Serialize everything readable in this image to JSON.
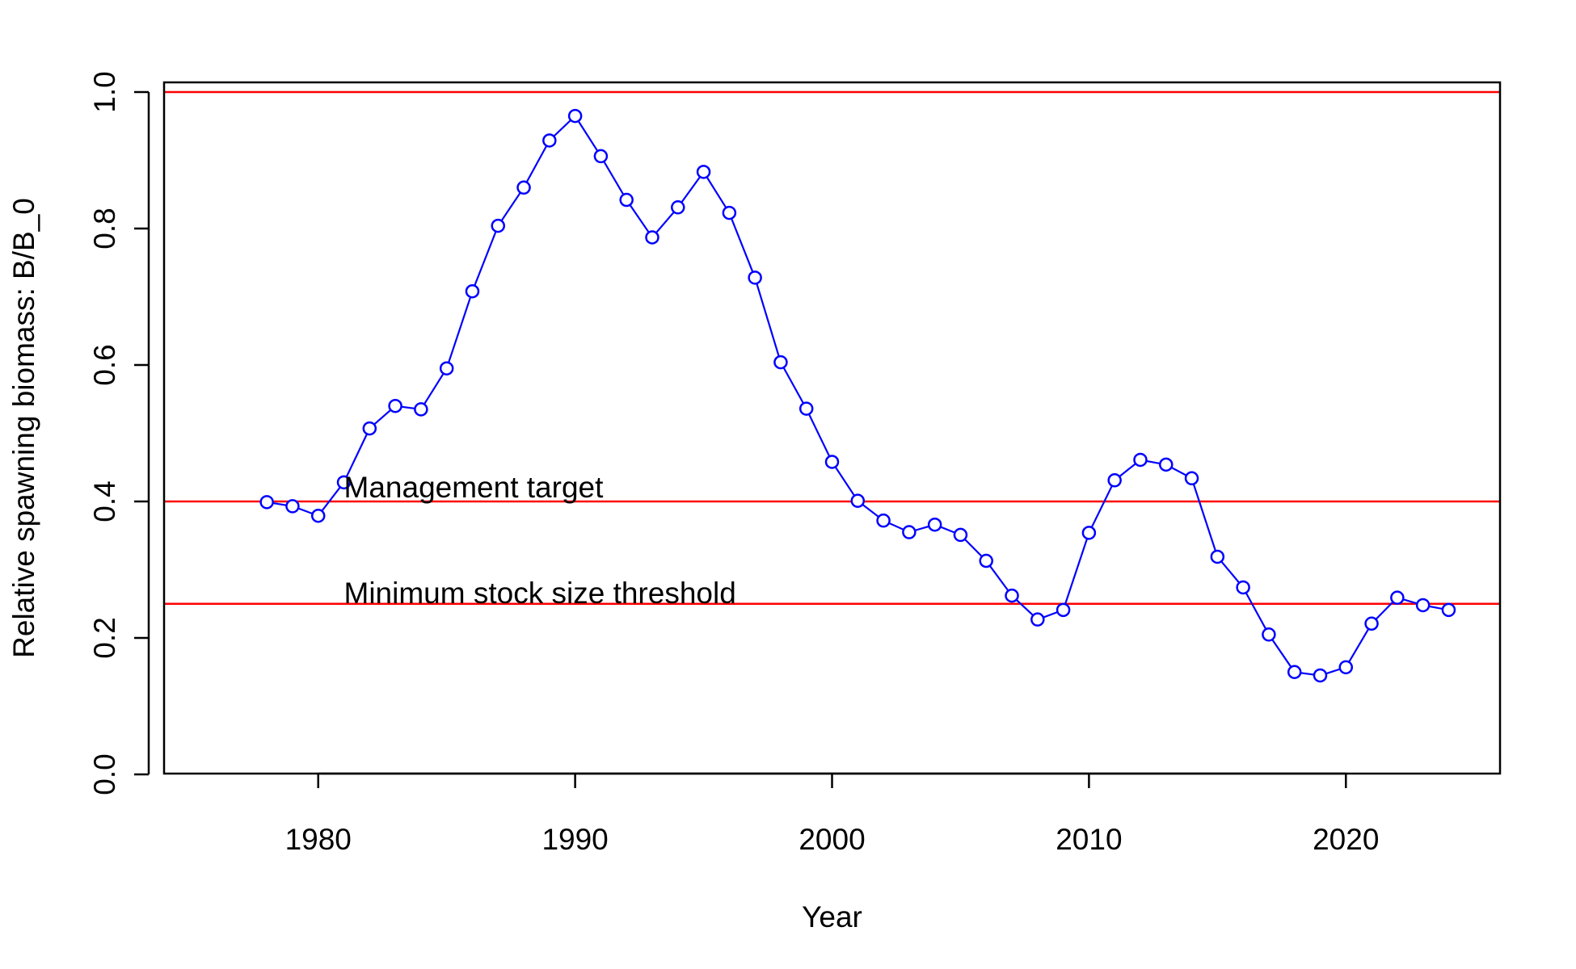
{
  "chart_data": {
    "type": "line",
    "title": "",
    "xlabel": "Year",
    "ylabel": "Relative spawning biomass: B/B_0",
    "xlim": [
      1974,
      2026
    ],
    "ylim": [
      0,
      1
    ],
    "xticks": [
      1980,
      1990,
      2000,
      2010,
      2020
    ],
    "yticks": [
      0.0,
      0.2,
      0.4,
      0.6,
      0.8,
      1.0
    ],
    "ytick_labels": [
      "0.0",
      "0.2",
      "0.4",
      "0.6",
      "0.8",
      "1.0"
    ],
    "grid": false,
    "legend": "none",
    "series": [
      {
        "color": "#0000ff",
        "marker": "open-circle",
        "x": [
          1978,
          1979,
          1980,
          1981,
          1982,
          1983,
          1984,
          1985,
          1986,
          1987,
          1988,
          1989,
          1990,
          1991,
          1992,
          1993,
          1994,
          1995,
          1996,
          1997,
          1998,
          1999,
          2000,
          2001,
          2002,
          2003,
          2004,
          2005,
          2006,
          2007,
          2008,
          2009,
          2010,
          2011,
          2012,
          2013,
          2014,
          2015,
          2016,
          2017,
          2018,
          2019,
          2020,
          2021,
          2022,
          2023,
          2024
        ],
        "y": [
          0.399,
          0.393,
          0.379,
          0.428,
          0.507,
          0.54,
          0.535,
          0.595,
          0.708,
          0.804,
          0.86,
          0.929,
          0.965,
          0.906,
          0.842,
          0.787,
          0.831,
          0.883,
          0.823,
          0.728,
          0.604,
          0.536,
          0.458,
          0.401,
          0.372,
          0.355,
          0.366,
          0.351,
          0.313,
          0.262,
          0.227,
          0.241,
          0.354,
          0.431,
          0.461,
          0.454,
          0.434,
          0.319,
          0.274,
          0.205,
          0.15,
          0.145,
          0.157,
          0.221,
          0.259,
          0.248,
          0.241
        ]
      }
    ],
    "reference_lines": [
      {
        "y": 1.0,
        "color": "#ff0000",
        "label": ""
      },
      {
        "y": 0.4,
        "color": "#ff0000",
        "label": "Management target"
      },
      {
        "y": 0.25,
        "color": "#ff0000",
        "label": "Minimum stock size threshold"
      }
    ],
    "annotations": [
      {
        "text": "Management target",
        "x": 1981,
        "y": 0.42
      },
      {
        "text": "Minimum stock size threshold",
        "x": 1981,
        "y": 0.265
      }
    ]
  }
}
